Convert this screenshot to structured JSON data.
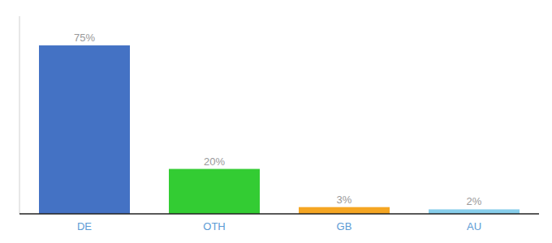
{
  "chart_data": {
    "type": "bar",
    "categories": [
      "DE",
      "OTH",
      "GB",
      "AU"
    ],
    "values": [
      75,
      20,
      3,
      2
    ],
    "value_labels": [
      "75%",
      "20%",
      "3%",
      "2%"
    ],
    "colors": [
      "#4472c4",
      "#33cc33",
      "#f5a623",
      "#87ceeb"
    ],
    "ylim": [
      0,
      88
    ],
    "data_labels": true,
    "tick_labels": "x",
    "grid": false
  }
}
